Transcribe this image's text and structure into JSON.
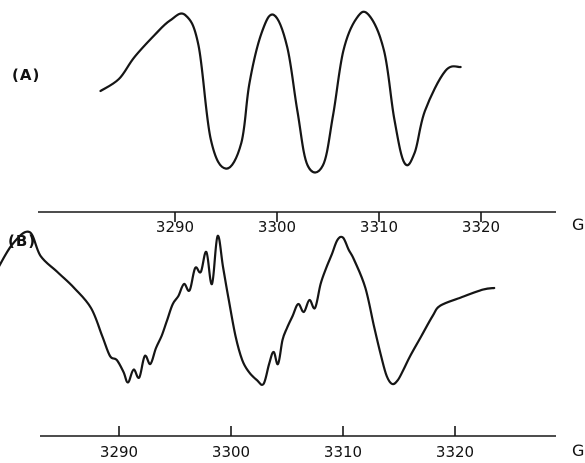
{
  "chart_data": [
    {
      "type": "line",
      "panel_label": "(A)",
      "xunit": "G",
      "xlim": [
        3282,
        3332
      ],
      "xticks": [
        3290,
        3300,
        3310,
        3320
      ],
      "tick_labels": [
        "3290",
        "3300",
        "3310",
        "3320"
      ],
      "grid": false,
      "series": [
        {
          "x": [
            3282.7,
            3284.5,
            3286.0,
            3288.0,
            3289.5,
            3291.0,
            3292.3,
            3293.5,
            3295.0,
            3296.5,
            3297.3,
            3298.5,
            3299.7,
            3301.0,
            3302.0,
            3303.0,
            3304.5,
            3305.5,
            3306.5,
            3307.8,
            3309.0,
            3310.5,
            3311.5,
            3312.5,
            3313.5,
            3314.5,
            3316.5,
            3318.0
          ],
          "y": [
            0.05,
            0.2,
            0.47,
            0.75,
            0.93,
            1.0,
            0.62,
            -0.55,
            -0.92,
            -0.6,
            0.15,
            0.78,
            1.0,
            0.6,
            -0.2,
            -0.88,
            -0.88,
            -0.25,
            0.55,
            0.96,
            1.0,
            0.55,
            -0.3,
            -0.85,
            -0.72,
            -0.2,
            0.3,
            0.35
          ]
        }
      ]
    },
    {
      "type": "line",
      "panel_label": "(B)",
      "xunit": "G",
      "xlim": [
        3282,
        3332
      ],
      "xticks": [
        3290,
        3300,
        3310,
        3320
      ],
      "tick_labels": [
        "3290",
        "3300",
        "3310",
        "3320"
      ],
      "grid": false,
      "series": [
        {
          "x": [
            3277.5,
            3279.0,
            3280.5,
            3282.0,
            3283.0,
            3284.5,
            3286.0,
            3287.5,
            3288.5,
            3289.2,
            3289.8,
            3290.4,
            3290.8,
            3291.3,
            3291.8,
            3292.3,
            3292.8,
            3293.3,
            3293.8,
            3294.3,
            3294.8,
            3295.3,
            3295.8,
            3296.3,
            3296.8,
            3297.3,
            3297.8,
            3298.3,
            3298.8,
            3299.3,
            3299.8,
            3300.4,
            3301.0,
            3301.6,
            3302.3,
            3302.9,
            3303.4,
            3303.8,
            3304.2,
            3304.6,
            3305.0,
            3305.5,
            3306.0,
            3306.5,
            3307.0,
            3307.5,
            3308.0,
            3308.5,
            3309.0,
            3309.5,
            3310.0,
            3310.5,
            3311.0,
            3312.0,
            3312.8,
            3313.4,
            3313.9,
            3314.4,
            3314.9,
            3315.4,
            3316.0,
            3317.0,
            3318.0,
            3318.7,
            3320.5,
            3322.5,
            3323.5
          ],
          "y": [
            0.15,
            0.5,
            0.85,
            1.0,
            0.7,
            0.5,
            0.3,
            0.05,
            -0.3,
            -0.55,
            -0.6,
            -0.75,
            -0.88,
            -0.72,
            -0.82,
            -0.55,
            -0.65,
            -0.45,
            -0.3,
            -0.1,
            0.1,
            0.2,
            0.35,
            0.27,
            0.55,
            0.5,
            0.75,
            0.35,
            0.95,
            0.55,
            0.15,
            -0.3,
            -0.6,
            -0.75,
            -0.85,
            -0.9,
            -0.65,
            -0.5,
            -0.65,
            -0.35,
            -0.2,
            -0.05,
            0.1,
            0.0,
            0.15,
            0.05,
            0.35,
            0.55,
            0.72,
            0.9,
            0.93,
            0.78,
            0.65,
            0.3,
            -0.2,
            -0.55,
            -0.8,
            -0.9,
            -0.85,
            -0.72,
            -0.55,
            -0.3,
            -0.05,
            0.08,
            0.18,
            0.28,
            0.3
          ]
        }
      ]
    }
  ]
}
